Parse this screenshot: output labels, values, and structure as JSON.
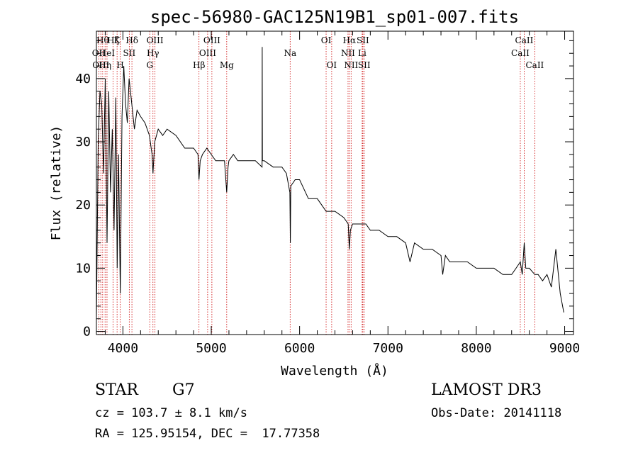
{
  "chart_data": {
    "type": "line",
    "title": "spec-56980-GAC125N19B1_sp01-007.fits",
    "xlabel": "Wavelength (Å)",
    "ylabel": "Flux (relative)",
    "xlim": [
      3700,
      9100
    ],
    "ylim": [
      -0.5,
      47.5
    ],
    "xticks": [
      4000,
      5000,
      6000,
      7000,
      8000,
      9000
    ],
    "yticks": [
      0,
      10,
      20,
      30,
      40
    ],
    "series": [
      {
        "name": "flux",
        "x": [
          3700,
          3720,
          3740,
          3760,
          3780,
          3800,
          3820,
          3840,
          3860,
          3880,
          3900,
          3920,
          3935,
          3950,
          3970,
          3990,
          4010,
          4030,
          4050,
          4070,
          4100,
          4130,
          4160,
          4200,
          4250,
          4300,
          4330,
          4340,
          4360,
          4400,
          4450,
          4500,
          4600,
          4700,
          4800,
          4850,
          4861,
          4875,
          4900,
          4950,
          5000,
          5050,
          5100,
          5150,
          5175,
          5190,
          5200,
          5250,
          5300,
          5400,
          5500,
          5575,
          5577,
          5579,
          5600,
          5700,
          5800,
          5850,
          5890,
          5895,
          5900,
          5950,
          6000,
          6100,
          6200,
          6250,
          6300,
          6350,
          6400,
          6500,
          6550,
          6563,
          6575,
          6600,
          6650,
          6700,
          6750,
          6800,
          6900,
          7000,
          7100,
          7200,
          7250,
          7300,
          7400,
          7500,
          7600,
          7620,
          7650,
          7700,
          7800,
          7900,
          8000,
          8100,
          8200,
          8300,
          8400,
          8450,
          8498,
          8520,
          8542,
          8560,
          8600,
          8662,
          8700,
          8750,
          8800,
          8850,
          8900,
          8950,
          8990
        ],
        "values": [
          2,
          30,
          38,
          36,
          25,
          40,
          14,
          38,
          22,
          32,
          16,
          37,
          10,
          28,
          6,
          34,
          42,
          36,
          33,
          40,
          36,
          32,
          35,
          34,
          33,
          31,
          28,
          25,
          30,
          32,
          31,
          32,
          31,
          29,
          29,
          28,
          24,
          27,
          28,
          29,
          28,
          27,
          27,
          27,
          22,
          26,
          27,
          28,
          27,
          27,
          27,
          26,
          45,
          27,
          27,
          26,
          26,
          25,
          22,
          14,
          23,
          24,
          24,
          21,
          21,
          20,
          19,
          19,
          19,
          18,
          17,
          13,
          16,
          17,
          17,
          17,
          17,
          16,
          16,
          15,
          15,
          14,
          11,
          14,
          13,
          13,
          12,
          9,
          12,
          11,
          11,
          11,
          10,
          10,
          10,
          9,
          9,
          10,
          11,
          9,
          14,
          10,
          10,
          9,
          9,
          8,
          9,
          7,
          13,
          6,
          3
        ]
      }
    ],
    "lines": [
      {
        "wl": 3727,
        "label": "OII",
        "row": 1
      },
      {
        "wl": 3750,
        "label": "OIII",
        "row": 2
      },
      {
        "wl": 3771,
        "label": "Hθ",
        "row": 0
      },
      {
        "wl": 3798,
        "label": "Hη",
        "row": 2
      },
      {
        "wl": 3820,
        "label": "HeI",
        "row": 1
      },
      {
        "wl": 3889,
        "label": "Hζ",
        "row": 0
      },
      {
        "wl": 3934,
        "label": "K",
        "row": 0
      },
      {
        "wl": 3970,
        "label": "H",
        "row": 2
      },
      {
        "wl": 4072,
        "label": "SII",
        "row": 1
      },
      {
        "wl": 4102,
        "label": "Hδ",
        "row": 0
      },
      {
        "wl": 4304,
        "label": "G",
        "row": 2
      },
      {
        "wl": 4340,
        "label": "Hγ",
        "row": 1
      },
      {
        "wl": 4363,
        "label": "OIII",
        "row": 0
      },
      {
        "wl": 4861,
        "label": "Hβ",
        "row": 2
      },
      {
        "wl": 4959,
        "label": "OIII",
        "row": 1
      },
      {
        "wl": 5007,
        "label": "OIII",
        "row": 0
      },
      {
        "wl": 5175,
        "label": "Mg",
        "row": 2
      },
      {
        "wl": 5893,
        "label": "Na",
        "row": 1
      },
      {
        "wl": 6300,
        "label": "OI",
        "row": 0
      },
      {
        "wl": 6363,
        "label": "OI",
        "row": 2
      },
      {
        "wl": 6548,
        "label": "NII",
        "row": 1
      },
      {
        "wl": 6563,
        "label": "Hα",
        "row": 0
      },
      {
        "wl": 6583,
        "label": "NII",
        "row": 2
      },
      {
        "wl": 6708,
        "label": "Li",
        "row": 1
      },
      {
        "wl": 6716,
        "label": "SII",
        "row": 0
      },
      {
        "wl": 6731,
        "label": "SII",
        "row": 2
      },
      {
        "wl": 8498,
        "label": "CaII",
        "row": 1
      },
      {
        "wl": 8542,
        "label": "CaII",
        "row": 0
      },
      {
        "wl": 8662,
        "label": "CaII",
        "row": 2
      }
    ]
  },
  "footer": {
    "object_class": "STAR",
    "subclass": "G7",
    "survey": "LAMOST DR3",
    "cz": "cz = 103.7 ± 8.1 km/s",
    "obs_date": "Obs-Date: 20141118",
    "coords": "RA = 125.95154, DEC =  17.77358"
  },
  "colors": {
    "axes": "#000000",
    "spectrum": "#000000",
    "line_marker": "#cc0000"
  }
}
